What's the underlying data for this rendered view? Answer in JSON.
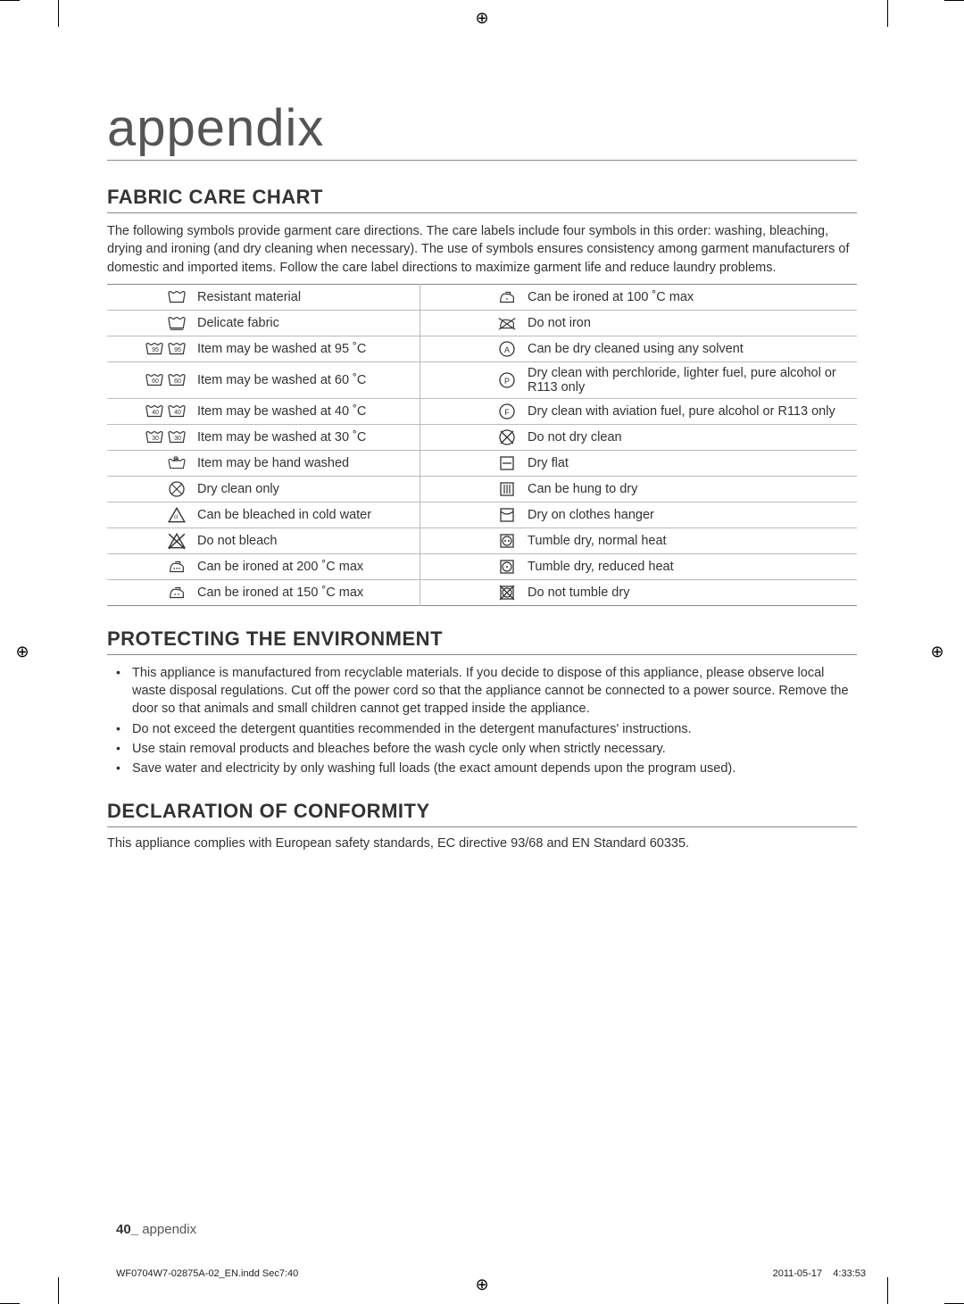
{
  "page_title": "appendix",
  "section1_title": "FABRIC CARE CHART",
  "intro": "The following symbols provide garment care directions. The care labels include four symbols in this order: washing, bleaching, drying and ironing (and dry cleaning when necessary).  The use of symbols ensures consistency among garment manufacturers of domestic and imported items.  Follow the care label directions to maximize garment life and reduce laundry problems.",
  "rows": [
    {
      "left_icon": "wash-resistant",
      "left": "Resistant material",
      "right_icon": "iron-100",
      "right": "Can be ironed at 100 ˚C max"
    },
    {
      "left_icon": "wash-delicate",
      "left": "Delicate fabric",
      "right_icon": "no-iron",
      "right": "Do not iron"
    },
    {
      "left_icon": "wash-95",
      "left": "Item may be washed at 95 ˚C",
      "right_icon": "dryclean-a",
      "right": "Can be dry cleaned using any solvent"
    },
    {
      "left_icon": "wash-60",
      "left": "Item may be washed at 60 ˚C",
      "right_icon": "dryclean-p",
      "right": "Dry clean with perchloride, lighter fuel, pure alcohol or R113 only"
    },
    {
      "left_icon": "wash-40",
      "left": "Item may be washed at 40 ˚C",
      "right_icon": "dryclean-f",
      "right": "Dry clean with aviation fuel, pure alcohol or R113 only"
    },
    {
      "left_icon": "wash-30",
      "left": "Item may be washed at 30 ˚C",
      "right_icon": "no-dryclean",
      "right": "Do not dry clean"
    },
    {
      "left_icon": "hand-wash",
      "left": "Item may be hand washed",
      "right_icon": "dry-flat",
      "right": "Dry flat"
    },
    {
      "left_icon": "dryclean-only",
      "left": "Dry clean only",
      "right_icon": "hang-dry",
      "right": "Can be hung to dry"
    },
    {
      "left_icon": "bleach-cold",
      "left": "Can be bleached in cold water",
      "right_icon": "hanger-dry",
      "right": "Dry on clothes hanger"
    },
    {
      "left_icon": "no-bleach",
      "left": "Do not bleach",
      "right_icon": "tumble-normal",
      "right": "Tumble dry, normal heat"
    },
    {
      "left_icon": "iron-200",
      "left": "Can be ironed at 200 ˚C max",
      "right_icon": "tumble-reduced",
      "right": "Tumble dry, reduced heat"
    },
    {
      "left_icon": "iron-150",
      "left": "Can be ironed at 150 ˚C max",
      "right_icon": "no-tumble",
      "right": "Do not tumble dry"
    }
  ],
  "section2_title": "PROTECTING THE ENVIRONMENT",
  "env_bullets": [
    "This appliance is manufactured from recyclable materials. If you decide to dispose of this appliance, please observe local waste disposal regulations. Cut off the power cord so that the appliance cannot be connected to a power source. Remove the door so that animals and small children cannot get trapped inside the appliance.",
    "Do not exceed the detergent quantities recommended in the detergent manufactures' instructions.",
    "Use stain removal products and bleaches before the wash cycle only when strictly necessary.",
    "Save water and electricity by only washing full loads (the exact amount depends upon the program used)."
  ],
  "section3_title": "DECLARATION OF CONFORMITY",
  "conformity": "This appliance complies with European safety standards, EC directive 93/68 and EN Standard 60335.",
  "footer_page": "40_",
  "footer_text": " appendix",
  "print_file": "WF0704W7-02875A-02_EN.indd   Sec7:40",
  "print_date": "2011-05-17",
  "print_time": "4:33:53",
  "colors": {
    "title": "#555555",
    "text": "#333333",
    "border": "#888888",
    "row_border": "#bbbbbb"
  }
}
